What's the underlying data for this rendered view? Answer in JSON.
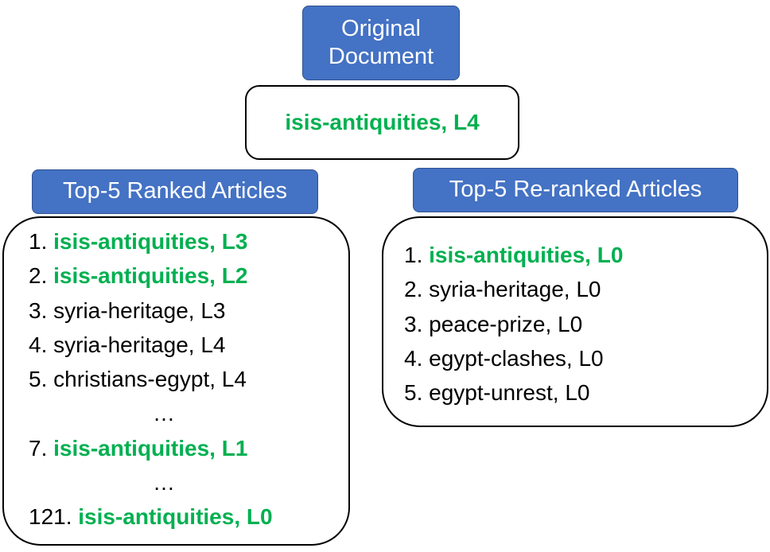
{
  "original": {
    "label_line1": "Original",
    "label_line2": "Document",
    "document": "isis-antiquities, L4"
  },
  "left": {
    "header": "Top-5 Ranked Articles",
    "items": [
      {
        "num": "1.",
        "text": "isis-antiquities, L3",
        "highlight": true
      },
      {
        "num": "2.",
        "text": "isis-antiquities, L2",
        "highlight": true
      },
      {
        "num": "3.",
        "text": "syria-heritage, L3",
        "highlight": false
      },
      {
        "num": "4.",
        "text": "syria-heritage, L4",
        "highlight": false
      },
      {
        "num": "5.",
        "text": "christians-egypt, L4",
        "highlight": false
      },
      {
        "ellipsis": "…"
      },
      {
        "num": "7.",
        "text": "isis-antiquities, L1",
        "highlight": true
      },
      {
        "ellipsis": "…"
      },
      {
        "num": "121.",
        "text": "isis-antiquities, L0",
        "highlight": true
      }
    ]
  },
  "right": {
    "header": "Top-5 Re-ranked Articles",
    "items": [
      {
        "num": "1.",
        "text": "isis-antiquities, L0",
        "highlight": true
      },
      {
        "num": "2.",
        "text": "syria-heritage, L0",
        "highlight": false
      },
      {
        "num": "3.",
        "text": "peace-prize, L0",
        "highlight": false
      },
      {
        "num": "4.",
        "text": "egypt-clashes, L0",
        "highlight": false
      },
      {
        "num": "5.",
        "text": "egypt-unrest, L0",
        "highlight": false
      }
    ]
  },
  "colors": {
    "label_fill": "#4472c4",
    "highlight": "#00b050"
  }
}
